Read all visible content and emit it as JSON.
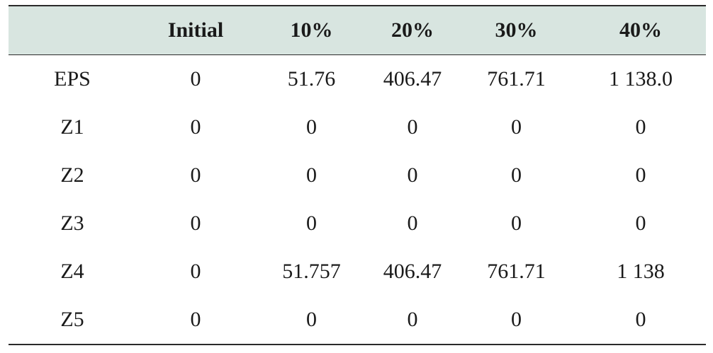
{
  "table": {
    "headers": [
      "",
      "Initial",
      "10%",
      "20%",
      "30%",
      "40%"
    ],
    "rows": [
      [
        "EPS",
        "0",
        "51.76",
        "406.47",
        "761.71",
        "1 138.0"
      ],
      [
        "Z1",
        "0",
        "0",
        "0",
        "0",
        "0"
      ],
      [
        "Z2",
        "0",
        "0",
        "0",
        "0",
        "0"
      ],
      [
        "Z3",
        "0",
        "0",
        "0",
        "0",
        "0"
      ],
      [
        "Z4",
        "0",
        "51.757",
        "406.47",
        "761.71",
        "1 138"
      ],
      [
        "Z5",
        "0",
        "0",
        "0",
        "0",
        "0"
      ]
    ]
  },
  "colors": {
    "header_background": "#d8e5e0",
    "rule": "#2a2a2a",
    "text": "#1a1a1a"
  }
}
